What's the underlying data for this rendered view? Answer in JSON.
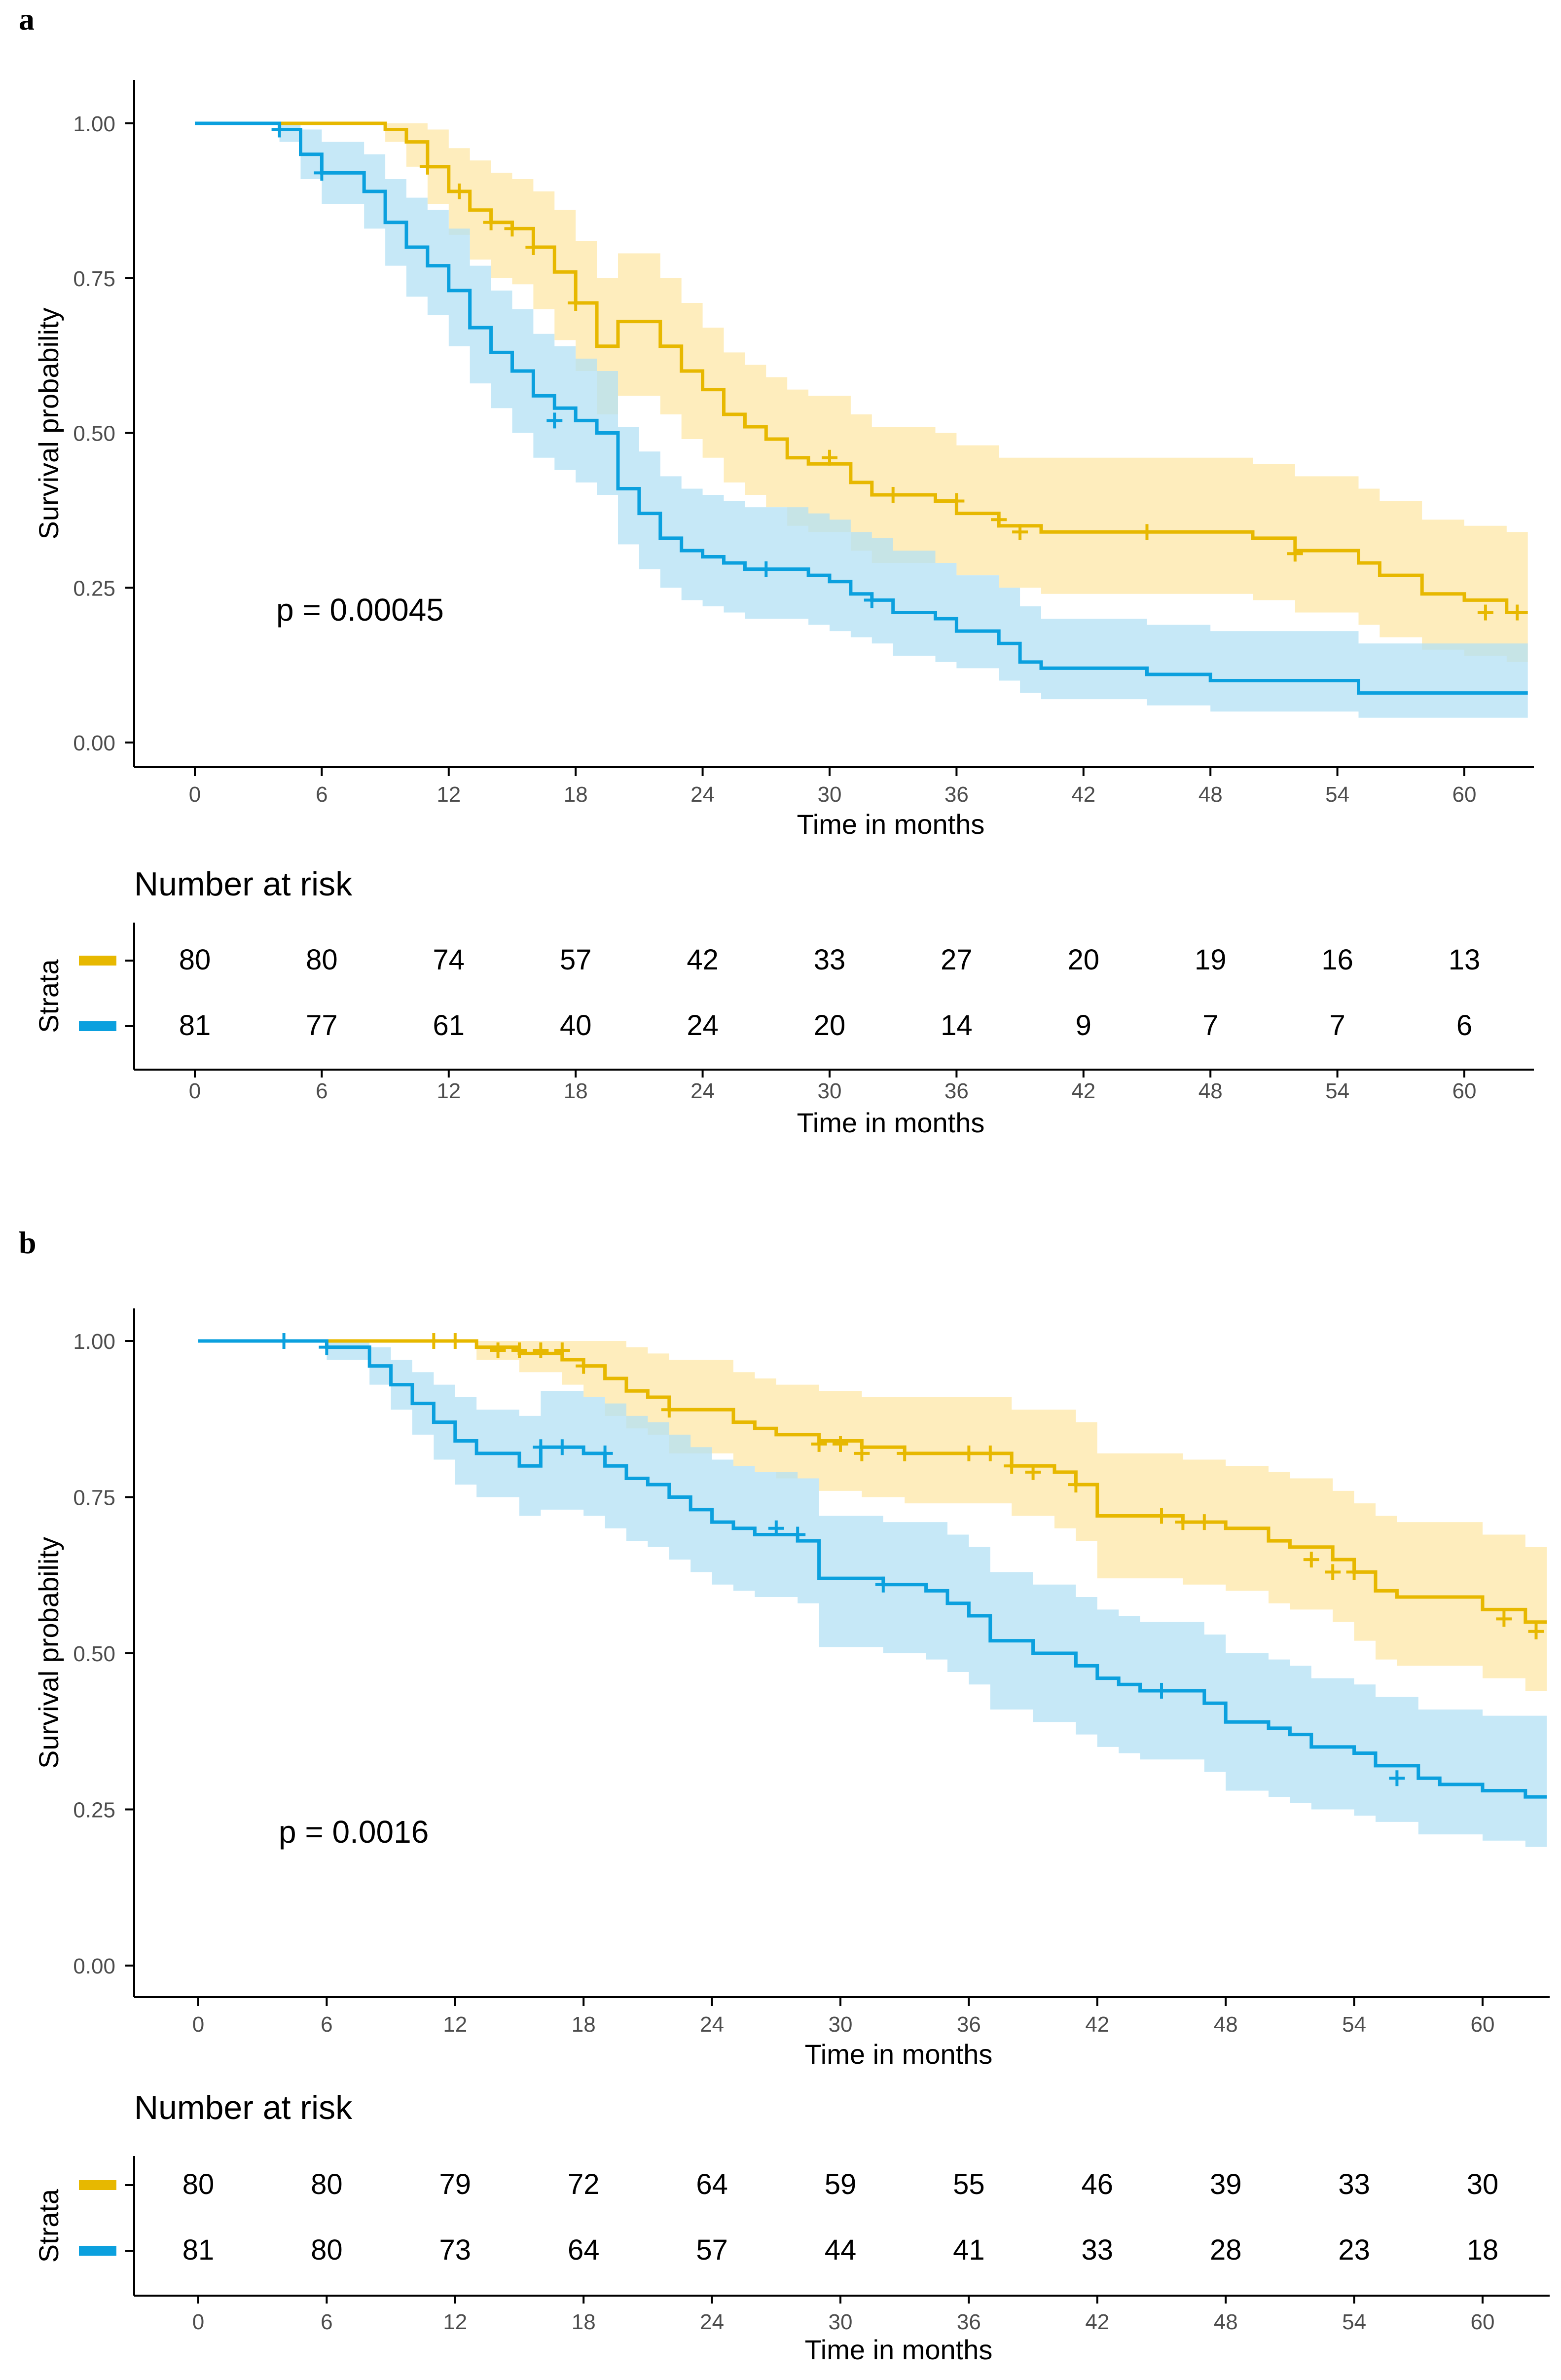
{
  "colors": {
    "strata1": "#E7B800",
    "strata2": "#0BA0DE",
    "band1": "#FDE7A7",
    "band2": "#B3E0F4",
    "axis": "#000000",
    "tick_text": "#4D4D4D"
  },
  "axis_ticks_x": [
    "0",
    "6",
    "12",
    "18",
    "24",
    "30",
    "36",
    "42",
    "48",
    "54",
    "60"
  ],
  "axis_ticks_y": [
    "0.00",
    "0.25",
    "0.50",
    "0.75",
    "1.00"
  ],
  "chart_data": [
    {
      "type": "line",
      "chart_kind": "kaplan-meier",
      "panel_label": "a",
      "xlabel": "Time in months",
      "ylabel": "Survival probability",
      "xlim": [
        -3,
        63
      ],
      "ylim": [
        0,
        1
      ],
      "pvalue_text": "p = 0.00045",
      "risk_table": {
        "title": "Number at risk",
        "ylabel": "Strata",
        "xlabel": "Time in months",
        "times": [
          0,
          6,
          12,
          18,
          24,
          30,
          36,
          42,
          48,
          54,
          60
        ],
        "rows": [
          [
            "80",
            "80",
            "74",
            "57",
            "42",
            "33",
            "27",
            "20",
            "19",
            "16",
            "13"
          ],
          [
            "81",
            "77",
            "61",
            "40",
            "24",
            "20",
            "14",
            "9",
            "7",
            "7",
            "6"
          ]
        ]
      },
      "series": [
        {
          "name": "strata1",
          "x": [
            0,
            9,
            10,
            11,
            12,
            13,
            14,
            15,
            16,
            17,
            18,
            19,
            20,
            22,
            23,
            24,
            25,
            26,
            27,
            28,
            29,
            31,
            32,
            35,
            36,
            38,
            40,
            45,
            50,
            52,
            55,
            56,
            58,
            60,
            62,
            63
          ],
          "y": [
            1,
            0.99,
            0.97,
            0.93,
            0.89,
            0.86,
            0.84,
            0.83,
            0.8,
            0.76,
            0.71,
            0.64,
            0.68,
            0.64,
            0.6,
            0.57,
            0.53,
            0.51,
            0.49,
            0.46,
            0.45,
            0.42,
            0.4,
            0.39,
            0.37,
            0.35,
            0.34,
            0.34,
            0.33,
            0.31,
            0.29,
            0.27,
            0.24,
            0.23,
            0.21,
            0.21
          ],
          "lower": [
            1,
            0.97,
            0.93,
            0.87,
            0.82,
            0.78,
            0.75,
            0.74,
            0.7,
            0.65,
            0.6,
            0.53,
            0.56,
            0.53,
            0.49,
            0.46,
            0.42,
            0.4,
            0.38,
            0.35,
            0.34,
            0.31,
            0.29,
            0.29,
            0.27,
            0.25,
            0.24,
            0.24,
            0.23,
            0.21,
            0.19,
            0.17,
            0.15,
            0.14,
            0.13,
            0.13
          ],
          "upper": [
            1,
            1,
            1,
            0.99,
            0.96,
            0.94,
            0.92,
            0.91,
            0.89,
            0.86,
            0.81,
            0.75,
            0.79,
            0.75,
            0.71,
            0.67,
            0.63,
            0.61,
            0.59,
            0.57,
            0.56,
            0.53,
            0.51,
            0.5,
            0.48,
            0.46,
            0.46,
            0.46,
            0.45,
            0.43,
            0.41,
            0.39,
            0.36,
            0.35,
            0.34,
            0.34
          ],
          "censor_x": [
            11,
            12.5,
            14,
            15,
            16,
            18,
            30,
            33,
            36,
            38,
            39,
            45,
            52,
            61,
            62.5
          ],
          "censor_y": [
            0.93,
            0.89,
            0.84,
            0.83,
            0.8,
            0.71,
            0.46,
            0.4,
            0.39,
            0.36,
            0.34,
            0.34,
            0.305,
            0.21,
            0.21
          ]
        },
        {
          "name": "strata2",
          "x": [
            0,
            4,
            5,
            6,
            8,
            9,
            10,
            11,
            12,
            13,
            14,
            15,
            16,
            17,
            18,
            19,
            20,
            21,
            22,
            23,
            24,
            25,
            26,
            29,
            30,
            31,
            32,
            33,
            35,
            36,
            38,
            39,
            40,
            45,
            48,
            50,
            55,
            60,
            63
          ],
          "y": [
            1,
            0.99,
            0.95,
            0.92,
            0.89,
            0.84,
            0.8,
            0.77,
            0.73,
            0.67,
            0.63,
            0.6,
            0.56,
            0.54,
            0.52,
            0.5,
            0.41,
            0.37,
            0.33,
            0.31,
            0.3,
            0.29,
            0.28,
            0.27,
            0.26,
            0.24,
            0.23,
            0.21,
            0.2,
            0.18,
            0.16,
            0.13,
            0.12,
            0.11,
            0.1,
            0.1,
            0.08,
            0.08,
            0.08
          ],
          "lower": [
            1,
            0.97,
            0.91,
            0.87,
            0.83,
            0.77,
            0.72,
            0.69,
            0.64,
            0.58,
            0.54,
            0.5,
            0.46,
            0.44,
            0.42,
            0.4,
            0.32,
            0.28,
            0.25,
            0.23,
            0.22,
            0.21,
            0.2,
            0.19,
            0.18,
            0.17,
            0.16,
            0.14,
            0.13,
            0.12,
            0.1,
            0.08,
            0.07,
            0.06,
            0.05,
            0.05,
            0.04,
            0.04,
            0.04
          ],
          "upper": [
            1,
            1,
            0.99,
            0.97,
            0.95,
            0.91,
            0.88,
            0.86,
            0.83,
            0.77,
            0.73,
            0.7,
            0.66,
            0.64,
            0.62,
            0.6,
            0.51,
            0.47,
            0.43,
            0.41,
            0.4,
            0.39,
            0.38,
            0.37,
            0.36,
            0.34,
            0.33,
            0.31,
            0.29,
            0.27,
            0.25,
            0.22,
            0.2,
            0.19,
            0.18,
            0.18,
            0.16,
            0.16,
            0.16
          ],
          "censor_x": [
            4,
            6,
            17,
            27,
            32
          ],
          "censor_y": [
            0.99,
            0.92,
            0.52,
            0.28,
            0.23
          ]
        }
      ]
    },
    {
      "type": "line",
      "chart_kind": "kaplan-meier",
      "panel_label": "b",
      "xlabel": "Time in months",
      "ylabel": "Survival probability",
      "xlim": [
        -3,
        63
      ],
      "ylim": [
        0,
        1
      ],
      "pvalue_text": "p = 0.0016",
      "risk_table": {
        "title": "Number at risk",
        "ylabel": "Strata",
        "xlabel": "Time in months",
        "times": [
          0,
          6,
          12,
          18,
          24,
          30,
          36,
          42,
          48,
          54,
          60
        ],
        "rows": [
          [
            "80",
            "80",
            "79",
            "72",
            "64",
            "59",
            "55",
            "46",
            "39",
            "33",
            "30"
          ],
          [
            "81",
            "80",
            "73",
            "64",
            "57",
            "44",
            "41",
            "33",
            "28",
            "23",
            "18"
          ]
        ]
      },
      "series": [
        {
          "name": "strata1",
          "x": [
            0,
            13,
            15,
            17,
            18,
            19,
            20,
            21,
            22,
            25,
            26,
            27,
            29,
            31,
            33,
            36,
            38,
            40,
            41,
            42,
            44,
            46,
            48,
            50,
            51,
            53,
            54,
            55,
            56,
            58,
            60,
            62,
            63
          ],
          "y": [
            1,
            0.99,
            0.98,
            0.97,
            0.96,
            0.94,
            0.92,
            0.91,
            0.89,
            0.87,
            0.86,
            0.85,
            0.84,
            0.83,
            0.82,
            0.82,
            0.8,
            0.79,
            0.77,
            0.72,
            0.72,
            0.71,
            0.7,
            0.68,
            0.67,
            0.65,
            0.63,
            0.6,
            0.59,
            0.59,
            0.57,
            0.55,
            0.55
          ],
          "lower": [
            1,
            0.97,
            0.95,
            0.93,
            0.91,
            0.88,
            0.86,
            0.85,
            0.82,
            0.8,
            0.79,
            0.78,
            0.76,
            0.75,
            0.74,
            0.74,
            0.72,
            0.7,
            0.68,
            0.62,
            0.62,
            0.61,
            0.6,
            0.58,
            0.57,
            0.55,
            0.52,
            0.49,
            0.48,
            0.48,
            0.46,
            0.44,
            0.44
          ],
          "upper": [
            1,
            1,
            1,
            1,
            1,
            1,
            0.99,
            0.98,
            0.97,
            0.95,
            0.94,
            0.93,
            0.92,
            0.91,
            0.91,
            0.91,
            0.89,
            0.89,
            0.87,
            0.82,
            0.82,
            0.81,
            0.8,
            0.79,
            0.78,
            0.76,
            0.74,
            0.72,
            0.71,
            0.71,
            0.69,
            0.67,
            0.67
          ],
          "censor_x": [
            11,
            12,
            14,
            15,
            16,
            17,
            18,
            22,
            29,
            30,
            31,
            33,
            36,
            37,
            38,
            39,
            41,
            45,
            46,
            47,
            52,
            53,
            54,
            61,
            62.5
          ],
          "censor_y": [
            1,
            1,
            0.985,
            0.985,
            0.985,
            0.985,
            0.96,
            0.89,
            0.835,
            0.835,
            0.82,
            0.82,
            0.82,
            0.82,
            0.8,
            0.79,
            0.77,
            0.72,
            0.71,
            0.71,
            0.65,
            0.63,
            0.63,
            0.555,
            0.535
          ]
        },
        {
          "name": "strata2",
          "x": [
            0,
            6,
            8,
            9,
            10,
            11,
            12,
            13,
            15,
            16,
            18,
            19,
            20,
            21,
            22,
            23,
            24,
            25,
            26,
            28,
            29,
            32,
            34,
            35,
            36,
            37,
            39,
            41,
            42,
            43,
            44,
            45,
            47,
            48,
            50,
            51,
            52,
            54,
            55,
            57,
            58,
            60,
            62,
            63
          ],
          "y": [
            1,
            0.99,
            0.96,
            0.93,
            0.9,
            0.87,
            0.84,
            0.82,
            0.8,
            0.83,
            0.82,
            0.8,
            0.78,
            0.77,
            0.75,
            0.73,
            0.71,
            0.7,
            0.69,
            0.68,
            0.62,
            0.61,
            0.6,
            0.58,
            0.56,
            0.52,
            0.5,
            0.48,
            0.46,
            0.45,
            0.44,
            0.44,
            0.42,
            0.39,
            0.38,
            0.37,
            0.35,
            0.34,
            0.32,
            0.3,
            0.29,
            0.28,
            0.27,
            0.27
          ],
          "lower": [
            1,
            0.97,
            0.93,
            0.89,
            0.85,
            0.81,
            0.77,
            0.75,
            0.72,
            0.73,
            0.72,
            0.7,
            0.68,
            0.67,
            0.65,
            0.63,
            0.61,
            0.6,
            0.59,
            0.58,
            0.51,
            0.5,
            0.49,
            0.47,
            0.45,
            0.41,
            0.39,
            0.37,
            0.35,
            0.34,
            0.33,
            0.33,
            0.31,
            0.28,
            0.27,
            0.26,
            0.25,
            0.24,
            0.23,
            0.21,
            0.21,
            0.2,
            0.19,
            0.19
          ],
          "upper": [
            1,
            1,
            0.99,
            0.97,
            0.95,
            0.93,
            0.91,
            0.89,
            0.88,
            0.92,
            0.91,
            0.9,
            0.88,
            0.87,
            0.85,
            0.83,
            0.81,
            0.8,
            0.79,
            0.78,
            0.72,
            0.71,
            0.71,
            0.69,
            0.67,
            0.63,
            0.61,
            0.59,
            0.57,
            0.56,
            0.55,
            0.55,
            0.53,
            0.5,
            0.49,
            0.48,
            0.46,
            0.45,
            0.43,
            0.41,
            0.41,
            0.4,
            0.4,
            0.4
          ],
          "censor_x": [
            4,
            6,
            16,
            17,
            19,
            27,
            28,
            32,
            45,
            56
          ],
          "censor_y": [
            1,
            0.99,
            0.83,
            0.83,
            0.82,
            0.7,
            0.69,
            0.61,
            0.44,
            0.3
          ]
        }
      ]
    }
  ]
}
